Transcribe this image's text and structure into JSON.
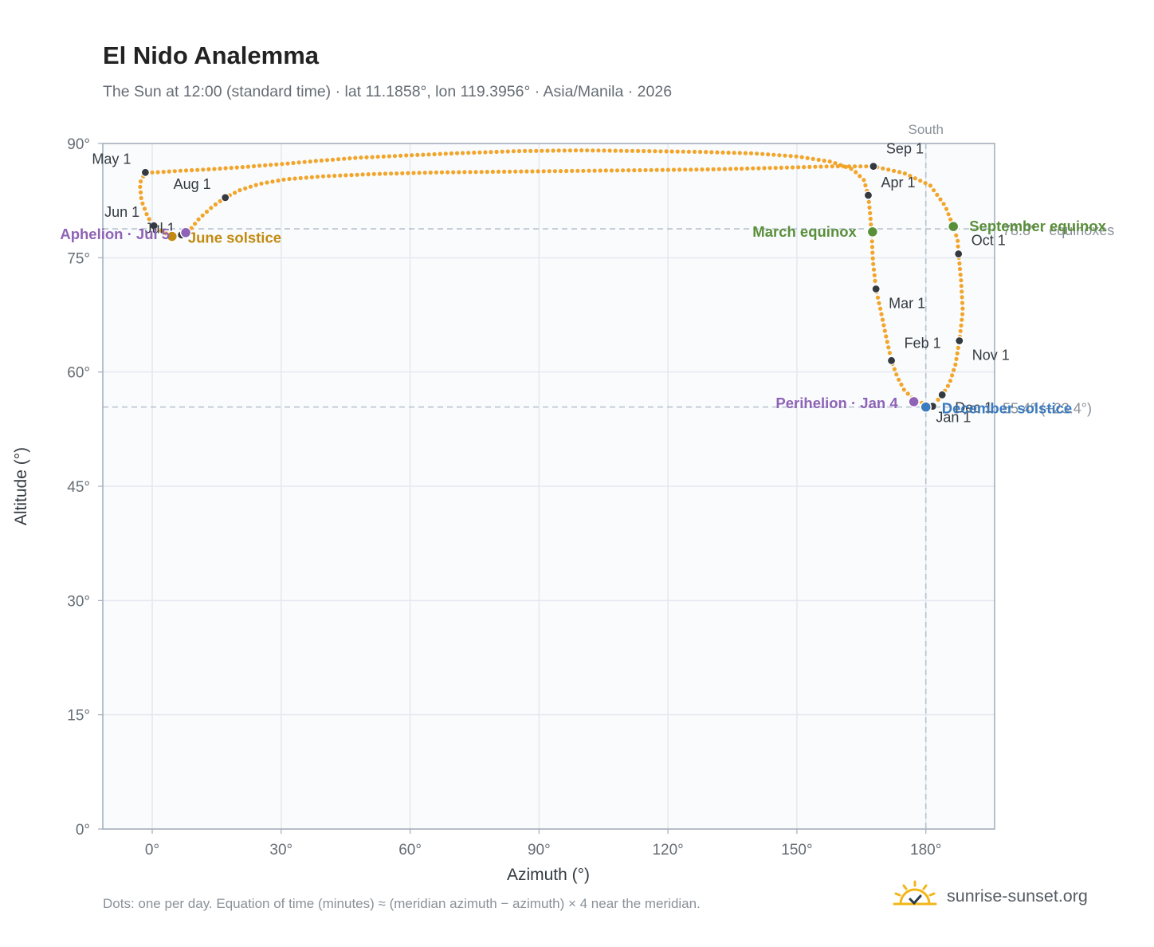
{
  "title": "El Nido Analemma",
  "subtitle": "The Sun at 12:00 (standard time) · lat 11.1858°, lon 119.3956° · Asia/Manila · 2026",
  "footnote": "Dots: one per day. Equation of time (minutes) ≈ (meridian azimuth − azimuth) × 4 near the meridian.",
  "brand": "sunrise-sunset.org",
  "colors": {
    "path": "#f2a52a",
    "month": "#343a40",
    "solstice_june": "#c28a10",
    "solstice_december": "#3b7bbf",
    "equinox": "#5a8f3a",
    "apsis": "#8e62b5",
    "grid": "#e4e8ee",
    "plot_bg": "#f9fbfd",
    "frame": "#a3acb9",
    "ref": "#b7c1ce"
  },
  "chart_data": {
    "type": "scatter",
    "xlabel": "Azimuth (°)",
    "ylabel": "Altitude (°)",
    "xlim": [
      -11.5,
      196
    ],
    "ylim": [
      0,
      90
    ],
    "x_ticks": [
      {
        "value": 0,
        "label": "0°"
      },
      {
        "value": 30,
        "label": "30°"
      },
      {
        "value": 60,
        "label": "60°"
      },
      {
        "value": 90,
        "label": "90°"
      },
      {
        "value": 120,
        "label": "120°"
      },
      {
        "value": 150,
        "label": "150°"
      },
      {
        "value": 180,
        "label": "180°"
      }
    ],
    "y_ticks": [
      {
        "value": 0,
        "label": "0°"
      },
      {
        "value": 15,
        "label": "15°"
      },
      {
        "value": 30,
        "label": "30°"
      },
      {
        "value": 45,
        "label": "45°"
      },
      {
        "value": 60,
        "label": "60°"
      },
      {
        "value": 75,
        "label": "75°"
      },
      {
        "value": 90,
        "label": "90°"
      }
    ],
    "grid": true,
    "reference_lines": [
      {
        "axis": "x",
        "value": 180,
        "label": "South"
      },
      {
        "axis": "y",
        "value": 78.8,
        "label": "78.8° · equinoxes"
      },
      {
        "axis": "y",
        "value": 55.4,
        "label": "55.4° (−23.4°)"
      }
    ],
    "month_markers": [
      {
        "label": "Jan 1",
        "x": 181.6,
        "y": 55.5
      },
      {
        "label": "Feb 1",
        "x": 172.0,
        "y": 61.5
      },
      {
        "label": "Mar 1",
        "x": 168.4,
        "y": 70.9
      },
      {
        "label": "Apr 1",
        "x": 166.6,
        "y": 83.2
      },
      {
        "label": "May 1",
        "x": -1.6,
        "y": 86.2
      },
      {
        "label": "Jun 1",
        "x": 0.4,
        "y": 79.2
      },
      {
        "label": "Jul 1",
        "x": 6.8,
        "y": 78.0
      },
      {
        "label": "Aug 1",
        "x": 17.0,
        "y": 82.9
      },
      {
        "label": "Sep 1",
        "x": 167.8,
        "y": 87.0
      },
      {
        "label": "Oct 1",
        "x": 187.6,
        "y": 75.5
      },
      {
        "label": "Nov 1",
        "x": 187.8,
        "y": 64.1
      },
      {
        "label": "Dec 1",
        "x": 183.8,
        "y": 57.0
      }
    ],
    "events": [
      {
        "label": "March equinox",
        "x": 167.6,
        "y": 78.4,
        "kind": "equinox"
      },
      {
        "label": "June solstice",
        "x": 4.6,
        "y": 77.8,
        "kind": "solstice_june"
      },
      {
        "label": "September equinox",
        "x": 186.4,
        "y": 79.1,
        "kind": "equinox"
      },
      {
        "label": "December solstice",
        "x": 180.0,
        "y": 55.4,
        "kind": "solstice_december"
      },
      {
        "label": "Perihelion · Jan 4",
        "x": 177.2,
        "y": 56.1,
        "kind": "apsis"
      },
      {
        "label": "Aphelion · Jul 5",
        "x": 7.8,
        "y": 78.3,
        "kind": "apsis"
      }
    ],
    "path_anchors": [
      [
        181.6,
        55.5
      ],
      [
        179.3,
        55.9
      ],
      [
        177.0,
        56.5
      ],
      [
        175.0,
        57.6
      ],
      [
        173.4,
        59.3
      ],
      [
        172.0,
        61.5
      ],
      [
        170.8,
        64.5
      ],
      [
        169.6,
        67.8
      ],
      [
        168.4,
        70.9
      ],
      [
        167.7,
        74.5
      ],
      [
        167.4,
        78.0
      ],
      [
        167.0,
        81.0
      ],
      [
        166.6,
        83.2
      ],
      [
        165.6,
        85.2
      ],
      [
        163.0,
        86.6
      ],
      [
        158.0,
        87.6
      ],
      [
        150.0,
        88.3
      ],
      [
        140.0,
        88.7
      ],
      [
        128.0,
        88.9
      ],
      [
        115.0,
        89.0
      ],
      [
        100.0,
        89.1
      ],
      [
        85.0,
        89.0
      ],
      [
        70.0,
        88.7
      ],
      [
        58.0,
        88.4
      ],
      [
        47.0,
        88.1
      ],
      [
        38.0,
        87.7
      ],
      [
        30.0,
        87.3
      ],
      [
        21.0,
        86.9
      ],
      [
        13.0,
        86.6
      ],
      [
        6.0,
        86.4
      ],
      [
        0.5,
        86.2
      ],
      [
        -1.6,
        86.2
      ],
      [
        -2.9,
        84.8
      ],
      [
        -2.5,
        82.5
      ],
      [
        -1.0,
        80.3
      ],
      [
        0.4,
        79.2
      ],
      [
        2.5,
        78.4
      ],
      [
        4.6,
        77.8
      ],
      [
        6.8,
        78.0
      ],
      [
        8.7,
        78.6
      ],
      [
        11.0,
        80.2
      ],
      [
        14.0,
        81.7
      ],
      [
        17.0,
        82.9
      ],
      [
        20.5,
        83.9
      ],
      [
        25.0,
        84.7
      ],
      [
        31.0,
        85.3
      ],
      [
        40.0,
        85.7
      ],
      [
        52.0,
        86.0
      ],
      [
        66.0,
        86.2
      ],
      [
        82.0,
        86.3
      ],
      [
        98.0,
        86.4
      ],
      [
        114.0,
        86.5
      ],
      [
        130.0,
        86.6
      ],
      [
        145.0,
        86.8
      ],
      [
        158.0,
        87.0
      ],
      [
        167.8,
        87.0
      ],
      [
        175.0,
        86.1
      ],
      [
        181.0,
        84.5
      ],
      [
        184.5,
        81.8
      ],
      [
        186.4,
        79.1
      ],
      [
        187.4,
        77.3
      ],
      [
        187.6,
        75.5
      ],
      [
        188.2,
        72.0
      ],
      [
        188.6,
        68.0
      ],
      [
        187.8,
        64.1
      ],
      [
        186.9,
        61.0
      ],
      [
        185.5,
        58.5
      ],
      [
        183.8,
        57.0
      ],
      [
        182.0,
        55.8
      ]
    ]
  }
}
